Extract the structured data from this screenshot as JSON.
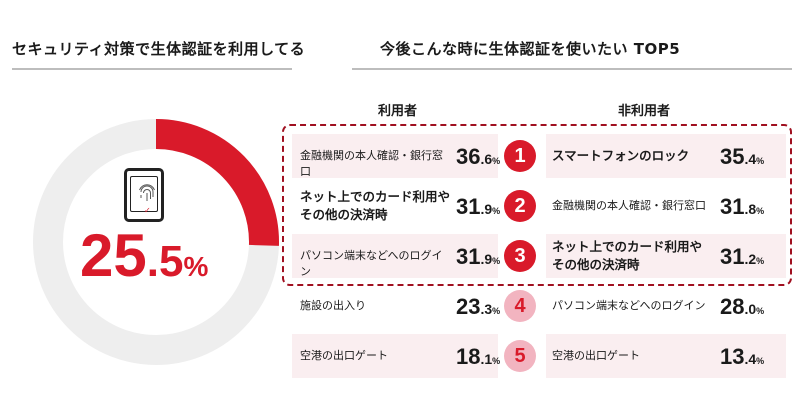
{
  "left_section": {
    "heading": "セキュリティ対策で生体認証を利用してる",
    "percent": {
      "whole": "25",
      "decimal": ".5",
      "unit": "%"
    },
    "check_mark": "✓"
  },
  "right_section": {
    "heading": "今後こんな時に生体認証を使いたい TOP5",
    "col_users": "利用者",
    "col_nonusers": "非利用者"
  },
  "chart_data": {
    "type": "table",
    "title": "今後こんな時に生体認証を使いたい TOP5",
    "gauge": {
      "label": "セキュリティ対策で生体認証を利用してる",
      "value": 25.5,
      "unit": "%"
    },
    "columns": [
      "利用者",
      "非利用者"
    ],
    "rows": [
      {
        "rank": "1",
        "user_item": "金融機関の本人確認・銀行窓口",
        "user_whole": "36",
        "user_dec": ".6",
        "user_value": 36.6,
        "nonuser_item": "スマートフォンのロック",
        "nonuser_whole": "35",
        "nonuser_dec": ".4",
        "nonuser_value": 35.4
      },
      {
        "rank": "2",
        "user_item": "ネット上でのカード利用やその他の決済時",
        "user_whole": "31",
        "user_dec": ".9",
        "user_value": 31.9,
        "nonuser_item": "金融機関の本人確認・銀行窓口",
        "nonuser_whole": "31",
        "nonuser_dec": ".8",
        "nonuser_value": 31.8
      },
      {
        "rank": "3",
        "user_item": "パソコン端末などへのログイン",
        "user_whole": "31",
        "user_dec": ".9",
        "user_value": 31.9,
        "nonuser_item": "ネット上でのカード利用やその他の決済時",
        "nonuser_whole": "31",
        "nonuser_dec": ".2",
        "nonuser_value": 31.2
      },
      {
        "rank": "4",
        "user_item": "施設の出入り",
        "user_whole": "23",
        "user_dec": ".3",
        "user_value": 23.3,
        "nonuser_item": "パソコン端末などへのログイン",
        "nonuser_whole": "28",
        "nonuser_dec": ".0",
        "nonuser_value": 28.0
      },
      {
        "rank": "5",
        "user_item": "空港の出口ゲート",
        "user_whole": "18",
        "user_dec": ".1",
        "user_value": 18.1,
        "nonuser_item": "空港の出口ゲート",
        "nonuser_whole": "13",
        "nonuser_dec": ".4",
        "nonuser_value": 13.4
      }
    ],
    "unit": "%"
  },
  "colors": {
    "accent": "#d91a2a",
    "track": "#eeeeee",
    "row_bg": "#faeef0",
    "rank_low_bg": "#f2b4c0"
  }
}
